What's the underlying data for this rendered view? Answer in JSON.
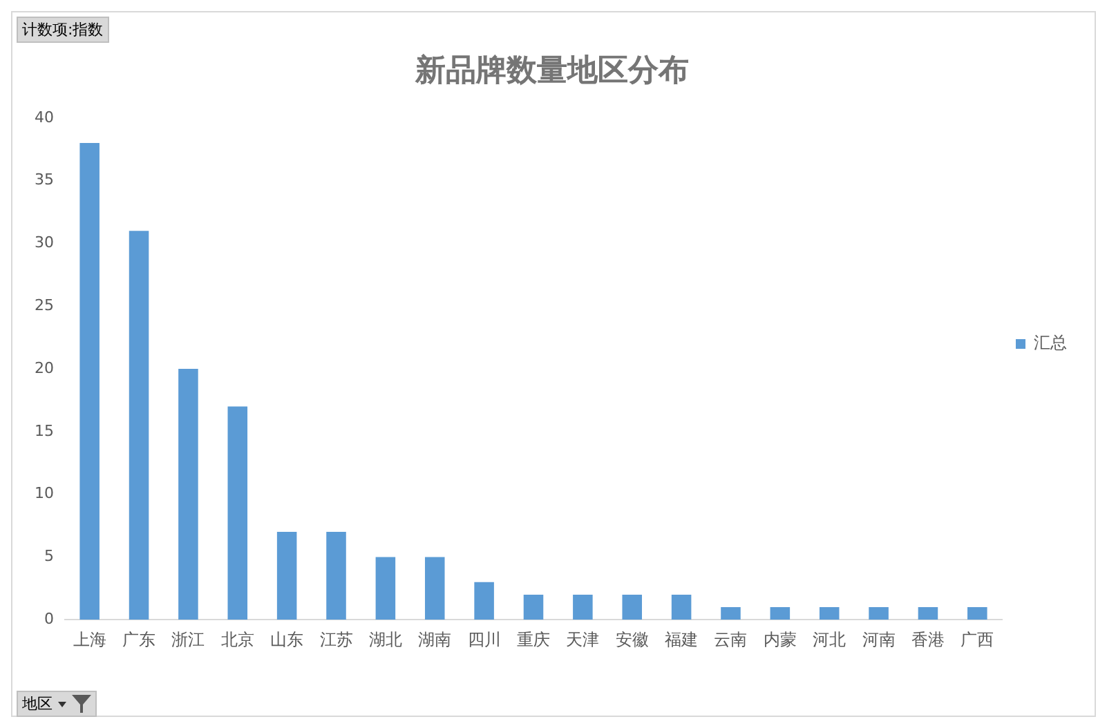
{
  "chart_data": {
    "type": "bar",
    "title": "新品牌数量地区分布",
    "categories": [
      "上海",
      "广东",
      "浙江",
      "北京",
      "山东",
      "江苏",
      "湖北",
      "湖南",
      "四川",
      "重庆",
      "天津",
      "安徽",
      "福建",
      "云南",
      "内蒙",
      "河北",
      "河南",
      "香港",
      "广西"
    ],
    "series": [
      {
        "name": "汇总",
        "color": "#5b9bd5",
        "values": [
          38,
          31,
          20,
          17,
          7,
          7,
          5,
          5,
          3,
          2,
          2,
          2,
          2,
          1,
          1,
          1,
          1,
          1,
          1
        ]
      }
    ],
    "ylim": [
      0,
      40
    ],
    "yticks": [
      0,
      5,
      10,
      15,
      20,
      25,
      30,
      35,
      40
    ],
    "grid": false,
    "legend": "right",
    "annotations": [
      "计数项:指数",
      "地区"
    ]
  }
}
